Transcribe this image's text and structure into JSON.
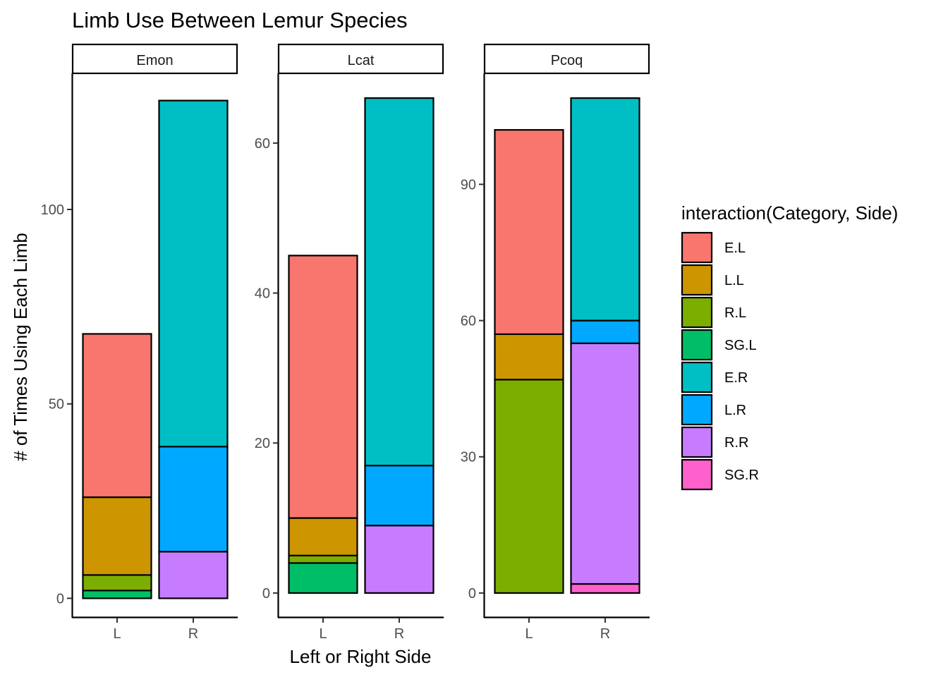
{
  "chart_data": {
    "type": "bar",
    "stacked": true,
    "title": "Limb Use Between Lemur Species",
    "xlabel": "Left or Right Side",
    "ylabel": "# of Times Using Each Limb",
    "categories": [
      "L",
      "R"
    ],
    "legend": {
      "title": "interaction(Category, Side)",
      "position": "right",
      "entries": [
        {
          "key": "E.L",
          "label": "E.L",
          "color": "#F8766D"
        },
        {
          "key": "L.L",
          "label": "L.L",
          "color": "#CD9600"
        },
        {
          "key": "R.L",
          "label": "R.L",
          "color": "#7CAE00"
        },
        {
          "key": "SG.L",
          "label": "SG.L",
          "color": "#00BE67"
        },
        {
          "key": "E.R",
          "label": "E.R",
          "color": "#00BFC4"
        },
        {
          "key": "L.R",
          "label": "L.R",
          "color": "#00A9FF"
        },
        {
          "key": "R.R",
          "label": "R.R",
          "color": "#C77CFF"
        },
        {
          "key": "SG.R",
          "label": "SG.R",
          "color": "#FF61CC"
        }
      ]
    },
    "stack_order_bottom_to_top": {
      "L": [
        "SG.L",
        "R.L",
        "L.L",
        "E.L"
      ],
      "R": [
        "SG.R",
        "R.R",
        "L.R",
        "E.R"
      ]
    },
    "facets": [
      {
        "name": "Emon",
        "ylim": [
          -5,
          135
        ],
        "yticks": [
          0,
          50,
          100
        ],
        "stacks": {
          "L": {
            "SG.L": 2,
            "R.L": 4,
            "L.L": 20,
            "E.L": 42
          },
          "R": {
            "SG.R": 0,
            "R.R": 12,
            "L.R": 27,
            "E.R": 89
          }
        }
      },
      {
        "name": "Lcat",
        "ylim": [
          -3.3,
          69.3
        ],
        "yticks": [
          0,
          20,
          40,
          60
        ],
        "stacks": {
          "L": {
            "SG.L": 4,
            "R.L": 1,
            "L.L": 5,
            "E.L": 35
          },
          "R": {
            "SG.R": 0,
            "R.R": 9,
            "L.R": 8,
            "E.R": 49
          }
        }
      },
      {
        "name": "Pcoq",
        "ylim": [
          -5.45,
          114.45
        ],
        "yticks": [
          0,
          30,
          60,
          90
        ],
        "stacks": {
          "L": {
            "SG.L": 0,
            "R.L": 47,
            "L.L": 10,
            "E.L": 45
          },
          "R": {
            "SG.R": 2,
            "R.R": 53,
            "L.R": 5,
            "E.R": 49
          }
        }
      }
    ],
    "grid": false
  }
}
